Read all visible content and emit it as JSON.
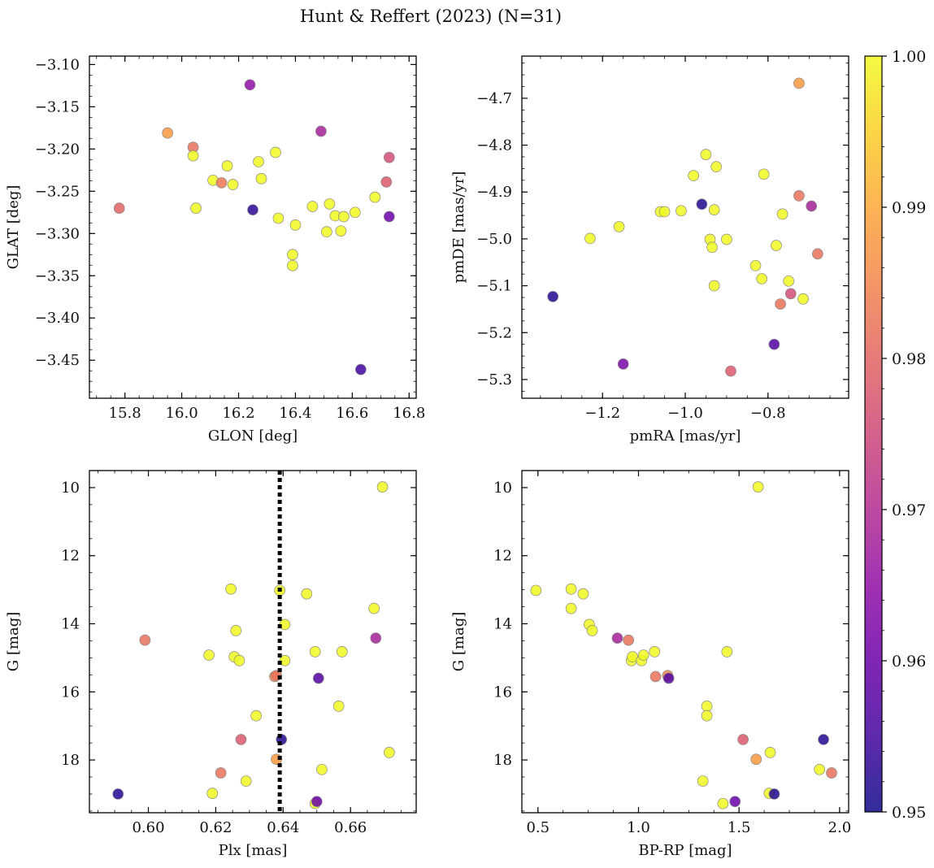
{
  "figure": {
    "title": "Hunt & Reffert (2023) (N=31)",
    "colormap": "plasma",
    "colorbar": {
      "range": [
        0.95,
        1.0
      ],
      "ticks": [
        0.95,
        0.96,
        0.97,
        0.98,
        0.99,
        1.0
      ],
      "tick_labels": [
        "0.95",
        "0.96",
        "0.97",
        "0.98",
        "0.99",
        "1.00"
      ]
    },
    "marker_edge_color": "#888888"
  },
  "chart_data": [
    {
      "type": "scatter",
      "xlabel": "GLON [deg]",
      "ylabel": "GLAT [deg]",
      "xlim": [
        15.675,
        16.825
      ],
      "ylim": [
        -3.495,
        -3.09
      ],
      "y_inverted": false,
      "xticks": [
        15.8,
        16.0,
        16.2,
        16.4,
        16.6,
        16.8
      ],
      "xtick_labels": [
        "15.8",
        "16.0",
        "16.2",
        "16.4",
        "16.6",
        "16.8"
      ],
      "yticks": [
        -3.1,
        -3.15,
        -3.2,
        -3.25,
        -3.3,
        -3.35,
        -3.4,
        -3.45
      ],
      "ytick_labels": [
        "−3.10",
        "−3.15",
        "−3.20",
        "−3.25",
        "−3.30",
        "−3.35",
        "−3.40",
        "−3.45"
      ],
      "points": [
        {
          "x": 15.78,
          "y": -3.27,
          "c": 0.98
        },
        {
          "x": 15.95,
          "y": -3.181,
          "c": 0.988
        },
        {
          "x": 16.04,
          "y": -3.198,
          "c": 0.982
        },
        {
          "x": 16.04,
          "y": -3.208,
          "c": 1.0
        },
        {
          "x": 16.05,
          "y": -3.27,
          "c": 1.0
        },
        {
          "x": 16.11,
          "y": -3.237,
          "c": 1.0
        },
        {
          "x": 16.14,
          "y": -3.24,
          "c": 0.983
        },
        {
          "x": 16.16,
          "y": -3.22,
          "c": 1.0
        },
        {
          "x": 16.18,
          "y": -3.242,
          "c": 1.0
        },
        {
          "x": 16.24,
          "y": -3.124,
          "c": 0.965
        },
        {
          "x": 16.25,
          "y": -3.272,
          "c": 0.953
        },
        {
          "x": 16.27,
          "y": -3.215,
          "c": 1.0
        },
        {
          "x": 16.28,
          "y": -3.235,
          "c": 1.0
        },
        {
          "x": 16.33,
          "y": -3.204,
          "c": 1.0
        },
        {
          "x": 16.34,
          "y": -3.282,
          "c": 1.0
        },
        {
          "x": 16.39,
          "y": -3.325,
          "c": 1.0
        },
        {
          "x": 16.39,
          "y": -3.338,
          "c": 1.0
        },
        {
          "x": 16.4,
          "y": -3.29,
          "c": 1.0
        },
        {
          "x": 16.46,
          "y": -3.268,
          "c": 1.0
        },
        {
          "x": 16.49,
          "y": -3.179,
          "c": 0.968
        },
        {
          "x": 16.51,
          "y": -3.298,
          "c": 1.0
        },
        {
          "x": 16.52,
          "y": -3.265,
          "c": 1.0
        },
        {
          "x": 16.54,
          "y": -3.279,
          "c": 1.0
        },
        {
          "x": 16.56,
          "y": -3.297,
          "c": 1.0
        },
        {
          "x": 16.57,
          "y": -3.28,
          "c": 1.0
        },
        {
          "x": 16.61,
          "y": -3.275,
          "c": 1.0
        },
        {
          "x": 16.63,
          "y": -3.461,
          "c": 0.955
        },
        {
          "x": 16.68,
          "y": -3.257,
          "c": 1.0
        },
        {
          "x": 16.72,
          "y": -3.239,
          "c": 0.978
        },
        {
          "x": 16.73,
          "y": -3.28,
          "c": 0.96
        },
        {
          "x": 16.73,
          "y": -3.21,
          "c": 0.976
        }
      ]
    },
    {
      "type": "scatter",
      "xlabel": "pmRA [mas/yr]",
      "ylabel": "pmDE [mas/yr]",
      "xlim": [
        -1.395,
        -0.605
      ],
      "ylim": [
        -5.34,
        -4.61
      ],
      "y_inverted": false,
      "xticks": [
        -1.2,
        -1.0,
        -0.8
      ],
      "xtick_labels": [
        "−1.2",
        "−1.0",
        "−0.8"
      ],
      "yticks": [
        -4.7,
        -4.8,
        -4.9,
        -5.0,
        -5.1,
        -5.2,
        -5.3
      ],
      "ytick_labels": [
        "−4.7",
        "−4.8",
        "−4.9",
        "−5.0",
        "−5.1",
        "−5.2",
        "−5.3"
      ],
      "points": [
        {
          "x": -1.32,
          "y": -5.123,
          "c": 0.952
        },
        {
          "x": -1.23,
          "y": -4.999,
          "c": 1.0
        },
        {
          "x": -1.16,
          "y": -4.974,
          "c": 1.0
        },
        {
          "x": -1.15,
          "y": -5.267,
          "c": 0.962
        },
        {
          "x": -1.06,
          "y": -4.942,
          "c": 1.0
        },
        {
          "x": -1.05,
          "y": -4.942,
          "c": 1.0
        },
        {
          "x": -1.01,
          "y": -4.94,
          "c": 1.0
        },
        {
          "x": -0.98,
          "y": -4.865,
          "c": 1.0
        },
        {
          "x": -0.96,
          "y": -4.926,
          "c": 0.952
        },
        {
          "x": -0.95,
          "y": -4.82,
          "c": 1.0
        },
        {
          "x": -0.94,
          "y": -5.001,
          "c": 1.0
        },
        {
          "x": -0.935,
          "y": -5.018,
          "c": 1.0
        },
        {
          "x": -0.93,
          "y": -4.938,
          "c": 1.0
        },
        {
          "x": -0.93,
          "y": -5.1,
          "c": 1.0
        },
        {
          "x": -0.925,
          "y": -4.846,
          "c": 1.0
        },
        {
          "x": -0.9,
          "y": -5.001,
          "c": 1.0
        },
        {
          "x": -0.89,
          "y": -5.282,
          "c": 0.978
        },
        {
          "x": -0.83,
          "y": -5.057,
          "c": 1.0
        },
        {
          "x": -0.815,
          "y": -5.085,
          "c": 1.0
        },
        {
          "x": -0.81,
          "y": -4.862,
          "c": 1.0
        },
        {
          "x": -0.785,
          "y": -5.225,
          "c": 0.957
        },
        {
          "x": -0.78,
          "y": -5.014,
          "c": 1.0
        },
        {
          "x": -0.77,
          "y": -5.139,
          "c": 0.982
        },
        {
          "x": -0.765,
          "y": -4.947,
          "c": 1.0
        },
        {
          "x": -0.75,
          "y": -5.09,
          "c": 1.0
        },
        {
          "x": -0.745,
          "y": -5.117,
          "c": 0.976
        },
        {
          "x": -0.725,
          "y": -4.668,
          "c": 0.988
        },
        {
          "x": -0.725,
          "y": -4.908,
          "c": 0.982
        },
        {
          "x": -0.715,
          "y": -5.128,
          "c": 1.0
        },
        {
          "x": -0.695,
          "y": -4.93,
          "c": 0.968
        },
        {
          "x": -0.68,
          "y": -5.032,
          "c": 0.982
        }
      ]
    },
    {
      "type": "scatter",
      "xlabel": "Plx [mas]",
      "ylabel": "G [mag]",
      "xlim": [
        0.5825,
        0.6795
      ],
      "ylim": [
        19.55,
        9.5
      ],
      "y_inverted": true,
      "xticks": [
        0.6,
        0.62,
        0.64,
        0.66
      ],
      "xtick_labels": [
        "0.60",
        "0.62",
        "0.64",
        "0.66"
      ],
      "yticks": [
        10,
        12,
        14,
        16,
        18
      ],
      "ytick_labels": [
        "10",
        "12",
        "14",
        "16",
        "18"
      ],
      "vline": {
        "x": 0.639,
        "style": "dotted",
        "color": "#000000"
      },
      "points": [
        {
          "x": 0.591,
          "y": 19.0,
          "c": 0.952
        },
        {
          "x": 0.599,
          "y": 14.48,
          "c": 0.982
        },
        {
          "x": 0.618,
          "y": 14.92,
          "c": 1.0
        },
        {
          "x": 0.619,
          "y": 18.98,
          "c": 1.0
        },
        {
          "x": 0.6215,
          "y": 18.38,
          "c": 0.982
        },
        {
          "x": 0.6245,
          "y": 12.98,
          "c": 1.0
        },
        {
          "x": 0.6255,
          "y": 14.97,
          "c": 1.0
        },
        {
          "x": 0.626,
          "y": 14.2,
          "c": 1.0
        },
        {
          "x": 0.627,
          "y": 15.08,
          "c": 1.0
        },
        {
          "x": 0.6275,
          "y": 17.4,
          "c": 0.978
        },
        {
          "x": 0.629,
          "y": 18.62,
          "c": 1.0
        },
        {
          "x": 0.632,
          "y": 16.7,
          "c": 1.0
        },
        {
          "x": 0.6375,
          "y": 15.55,
          "c": 0.985
        },
        {
          "x": 0.638,
          "y": 15.52,
          "c": 0.982
        },
        {
          "x": 0.638,
          "y": 17.98,
          "c": 0.988
        },
        {
          "x": 0.639,
          "y": 13.02,
          "c": 1.0
        },
        {
          "x": 0.6395,
          "y": 17.4,
          "c": 0.952
        },
        {
          "x": 0.6405,
          "y": 14.02,
          "c": 1.0
        },
        {
          "x": 0.6405,
          "y": 15.08,
          "c": 1.0
        },
        {
          "x": 0.647,
          "y": 13.12,
          "c": 1.0
        },
        {
          "x": 0.6495,
          "y": 14.82,
          "c": 1.0
        },
        {
          "x": 0.6495,
          "y": 19.28,
          "c": 1.0
        },
        {
          "x": 0.65,
          "y": 19.22,
          "c": 0.96
        },
        {
          "x": 0.6505,
          "y": 15.6,
          "c": 0.957
        },
        {
          "x": 0.6515,
          "y": 18.28,
          "c": 1.0
        },
        {
          "x": 0.6565,
          "y": 16.42,
          "c": 1.0
        },
        {
          "x": 0.6575,
          "y": 14.82,
          "c": 1.0
        },
        {
          "x": 0.667,
          "y": 13.55,
          "c": 1.0
        },
        {
          "x": 0.6675,
          "y": 14.42,
          "c": 0.968
        },
        {
          "x": 0.6695,
          "y": 9.98,
          "c": 1.0
        },
        {
          "x": 0.6715,
          "y": 17.78,
          "c": 1.0
        }
      ]
    },
    {
      "type": "scatter",
      "xlabel": "BP-RP [mag]",
      "ylabel": "G [mag]",
      "xlim": [
        0.42,
        2.045
      ],
      "ylim": [
        19.55,
        9.5
      ],
      "y_inverted": true,
      "xticks": [
        0.5,
        1.0,
        1.5,
        2.0
      ],
      "xtick_labels": [
        "0.5",
        "1.0",
        "1.5",
        "2.0"
      ],
      "yticks": [
        10,
        12,
        14,
        16,
        18
      ],
      "ytick_labels": [
        "10",
        "12",
        "14",
        "16",
        "18"
      ],
      "points": [
        {
          "x": 0.49,
          "y": 13.02,
          "c": 1.0
        },
        {
          "x": 0.665,
          "y": 12.98,
          "c": 1.0
        },
        {
          "x": 0.665,
          "y": 13.55,
          "c": 1.0
        },
        {
          "x": 0.725,
          "y": 13.12,
          "c": 1.0
        },
        {
          "x": 0.755,
          "y": 14.02,
          "c": 1.0
        },
        {
          "x": 0.77,
          "y": 14.2,
          "c": 1.0
        },
        {
          "x": 0.895,
          "y": 14.42,
          "c": 0.968
        },
        {
          "x": 0.95,
          "y": 14.48,
          "c": 0.982
        },
        {
          "x": 0.965,
          "y": 15.08,
          "c": 1.0
        },
        {
          "x": 0.97,
          "y": 14.97,
          "c": 1.0
        },
        {
          "x": 1.015,
          "y": 15.08,
          "c": 1.0
        },
        {
          "x": 1.025,
          "y": 14.92,
          "c": 1.0
        },
        {
          "x": 1.08,
          "y": 14.82,
          "c": 1.0
        },
        {
          "x": 1.085,
          "y": 15.55,
          "c": 0.982
        },
        {
          "x": 1.145,
          "y": 15.52,
          "c": 0.985
        },
        {
          "x": 1.15,
          "y": 15.6,
          "c": 0.957
        },
        {
          "x": 1.32,
          "y": 18.62,
          "c": 1.0
        },
        {
          "x": 1.34,
          "y": 16.42,
          "c": 1.0
        },
        {
          "x": 1.34,
          "y": 16.7,
          "c": 1.0
        },
        {
          "x": 1.42,
          "y": 19.28,
          "c": 1.0
        },
        {
          "x": 1.44,
          "y": 14.82,
          "c": 1.0
        },
        {
          "x": 1.48,
          "y": 19.22,
          "c": 0.96
        },
        {
          "x": 1.52,
          "y": 17.4,
          "c": 0.978
        },
        {
          "x": 1.585,
          "y": 17.98,
          "c": 0.988
        },
        {
          "x": 1.595,
          "y": 9.98,
          "c": 1.0
        },
        {
          "x": 1.65,
          "y": 18.98,
          "c": 1.0
        },
        {
          "x": 1.655,
          "y": 17.78,
          "c": 1.0
        },
        {
          "x": 1.675,
          "y": 19.0,
          "c": 0.952
        },
        {
          "x": 1.9,
          "y": 18.28,
          "c": 1.0
        },
        {
          "x": 1.92,
          "y": 17.4,
          "c": 0.952
        },
        {
          "x": 1.96,
          "y": 18.38,
          "c": 0.982
        }
      ]
    }
  ]
}
